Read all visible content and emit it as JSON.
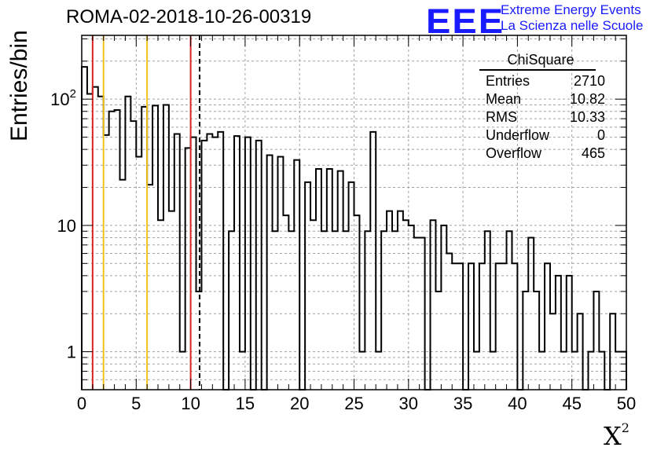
{
  "title": "ROMA-02-2018-10-26-00319",
  "logo": {
    "letters": "EEE",
    "line1": "Extreme Energy Events",
    "line2": "La Scienza nelle Scuole",
    "color": "#1a1aff"
  },
  "stats_box": {
    "title": "ChiSquare",
    "rows": [
      {
        "label": "Entries",
        "value": "2710"
      },
      {
        "label": "Mean",
        "value": "10.82"
      },
      {
        "label": "RMS",
        "value": "10.33"
      },
      {
        "label": "Underflow",
        "value": "0"
      },
      {
        "label": "Overflow",
        "value": "465"
      }
    ]
  },
  "chart_data": {
    "type": "bar",
    "histogram": true,
    "xlabel": "X",
    "xlabel_superscript": "2",
    "ylabel": "Entries/bin",
    "xlim": [
      0,
      50
    ],
    "ylim": [
      0.5,
      320
    ],
    "yscale": "log",
    "grid": true,
    "bin_width": 0.5,
    "x_ticks": [
      0,
      5,
      10,
      15,
      20,
      25,
      30,
      35,
      40,
      45,
      50
    ],
    "x_tick_labels": [
      "0",
      "5",
      "10",
      "15",
      "20",
      "25",
      "30",
      "35",
      "40",
      "45",
      "50"
    ],
    "y_major_ticks": [
      1,
      10,
      100
    ],
    "y_tick_labels": [
      "1",
      "10",
      "10"
    ],
    "y_tick_superscripts": [
      "",
      "",
      "2"
    ],
    "values": [
      180,
      110,
      125,
      105,
      52,
      80,
      82,
      23,
      105,
      67,
      35,
      87,
      21,
      89,
      11,
      90,
      13,
      53,
      1,
      41,
      50,
      3,
      47,
      53,
      50,
      55,
      0,
      9,
      51,
      1,
      50,
      0,
      47,
      0,
      36,
      9,
      35,
      12,
      9,
      33,
      0,
      22,
      11,
      28,
      9,
      28,
      9,
      27,
      9,
      22,
      12,
      1,
      9,
      55,
      1,
      9,
      13,
      9,
      13,
      11,
      10,
      8,
      8,
      0,
      11,
      3,
      10,
      6,
      5,
      5,
      0,
      5,
      1,
      5,
      9,
      1,
      5,
      5,
      9,
      5,
      0,
      3,
      8,
      3,
      1,
      5,
      2,
      4,
      1,
      4,
      1,
      2,
      0,
      1,
      3,
      1,
      0,
      2,
      1,
      1
    ],
    "vertical_lines": [
      {
        "x": 1,
        "color": "#dd2222",
        "style": "solid"
      },
      {
        "x": 2,
        "color": "#f2c01a",
        "style": "solid"
      },
      {
        "x": 6,
        "color": "#f2c01a",
        "style": "solid"
      },
      {
        "x": 10,
        "color": "#dd2222",
        "style": "solid"
      },
      {
        "x": 10.82,
        "color": "#000000",
        "style": "dashed"
      }
    ]
  }
}
